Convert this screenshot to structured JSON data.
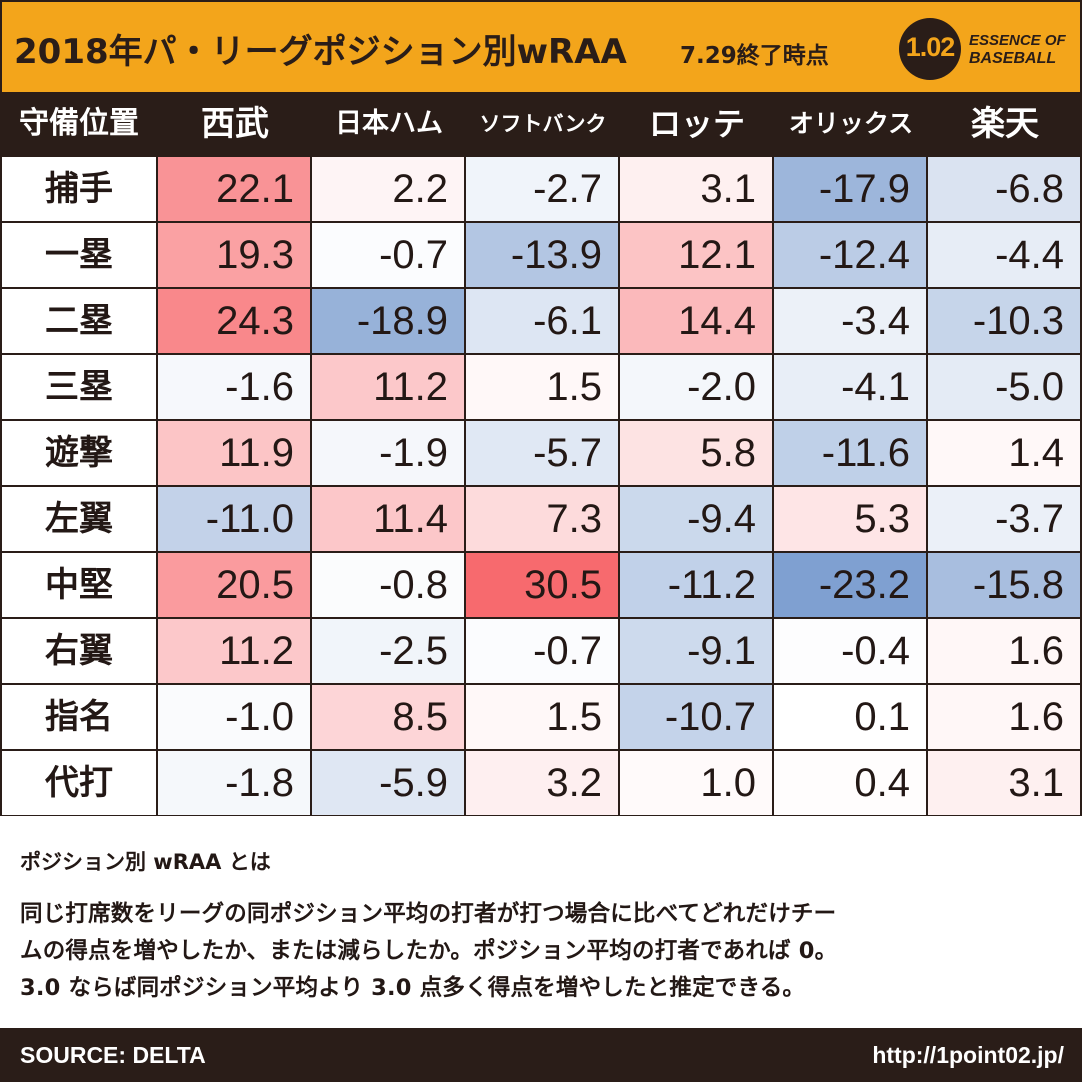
{
  "header": {
    "title": "2018年パ・リーグポジション別wRAA",
    "subtitle": "7.29終了時点",
    "logo_number": "1.02",
    "logo_line1": "ESSENCE OF",
    "logo_line2": "BASEBALL"
  },
  "chart_data": {
    "type": "heatmap",
    "title": "2018年パ・リーグポジション別wRAA",
    "corner_label": "守備位置",
    "teams": [
      "西武",
      "日本ハム",
      "ソフトバンク",
      "ロッテ",
      "オリックス",
      "楽天"
    ],
    "positions": [
      "捕手",
      "一塁",
      "二塁",
      "三塁",
      "遊撃",
      "左翼",
      "中堅",
      "右翼",
      "指名",
      "代打"
    ],
    "values": [
      [
        22.1,
        2.2,
        -2.7,
        3.1,
        -17.9,
        -6.8
      ],
      [
        19.3,
        -0.7,
        -13.9,
        12.1,
        -12.4,
        -4.4
      ],
      [
        24.3,
        -18.9,
        -6.1,
        14.4,
        -3.4,
        -10.3
      ],
      [
        -1.6,
        11.2,
        1.5,
        -2.0,
        -4.1,
        -5.0
      ],
      [
        11.9,
        -1.9,
        -5.7,
        5.8,
        -11.6,
        1.4
      ],
      [
        -11.0,
        11.4,
        7.3,
        -9.4,
        5.3,
        -3.7
      ],
      [
        20.5,
        -0.8,
        30.5,
        -11.2,
        -23.2,
        -15.8
      ],
      [
        11.2,
        -2.5,
        -0.7,
        -9.1,
        -0.4,
        1.6
      ],
      [
        -1.0,
        8.5,
        1.5,
        -10.7,
        0.1,
        1.6
      ],
      [
        -1.8,
        -5.9,
        3.2,
        1.0,
        0.4,
        3.1
      ]
    ],
    "color_scale": {
      "negative": "#7e9fd0",
      "neutral": "#ffffff",
      "positive": "#f76a6e",
      "max_abs": 30.5
    }
  },
  "note": {
    "title": "ポジション別 wRAA とは",
    "lines": [
      "同じ打席数をリーグの同ポジション平均の打者が打つ場合に比べてどれだけチー",
      "ムの得点を増やしたか、または減らしたか。ポジション平均の打者であれば 0。",
      "3.0 ならば同ポジション平均より 3.0 点多く得点を増やしたと推定できる。"
    ]
  },
  "footer": {
    "source": "SOURCE: DELTA",
    "url": "http://1point02.jp/"
  },
  "colors": {
    "dark": "#2a1d18",
    "accent": "#f3a51b"
  }
}
